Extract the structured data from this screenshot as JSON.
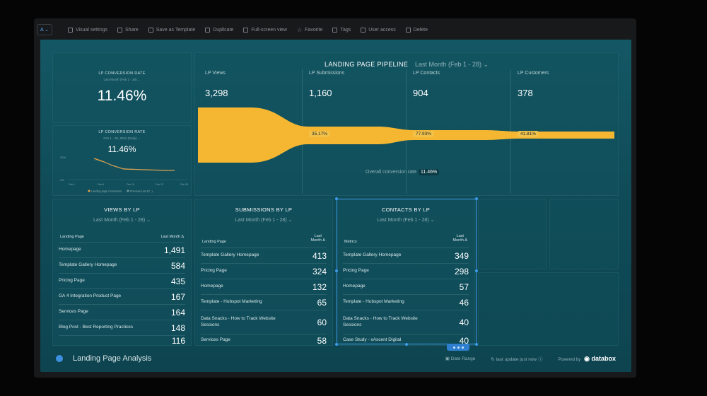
{
  "toolbar": {
    "logo": "A ⌄",
    "items": [
      "Visual settings",
      "Share",
      "Save as Template",
      "Duplicate",
      "Full-screen view",
      "Favorite",
      "Tags",
      "User access",
      "Delete"
    ]
  },
  "kpi_top": {
    "title": "LP CONVERSION RATE",
    "subtitle": "Last Month (Feb 1 - 28) ⌄",
    "value": "11.46%"
  },
  "kpi_chart": {
    "title": "LP CONVERSION RATE",
    "subtitle": "Feb 1 - 28, 2022 (Daily) ⌄",
    "value": "11.46%",
    "legend_current": "Landing page Conversion",
    "legend_previous": "Previous Last (P...)",
    "ytick_top": "20%",
    "ytick_bottom": "0%",
    "x_ticks": [
      "Feb 1",
      "Feb 8",
      "Feb 15",
      "Feb 22",
      "Feb 28"
    ],
    "colors": {
      "current": "#f2a23c",
      "previous": "#7a9aa0"
    }
  },
  "pipeline": {
    "title": "LANDING PAGE PIPELINE",
    "range": "Last Month (Feb 1 - 28) ⌄",
    "stages": [
      {
        "label": "LP Views",
        "value": "3,298"
      },
      {
        "label": "LP Submissions",
        "value": "1,160"
      },
      {
        "label": "LP Contacts",
        "value": "904"
      },
      {
        "label": "LP Customers",
        "value": "378"
      }
    ],
    "conversions": [
      "35.17%",
      "77.93%",
      "41.81%"
    ],
    "overall_label": "Overall conversion rate",
    "overall_value": "11.46%",
    "funnel_color": "#f5b731"
  },
  "views": {
    "title": "VIEWS BY LP",
    "range": "Last Month (Feb 1 - 28) ⌄",
    "col1": "Landing Page",
    "col2": "Last Month Δ",
    "rows": [
      {
        "name": "Homepage",
        "value": "1,491"
      },
      {
        "name": "Template Gallery Homepage",
        "value": "584"
      },
      {
        "name": "Pricing Page",
        "value": "435"
      },
      {
        "name": "GA 4 Integration Product Page",
        "value": "167"
      },
      {
        "name": "Services Page",
        "value": "164"
      },
      {
        "name": "Blog Post - Best Reporting Practices",
        "value": "148"
      },
      {
        "name": "",
        "value": "116"
      }
    ]
  },
  "submissions": {
    "title": "SUBMISSIONS BY LP",
    "range": "Last Month (Feb 1 - 28) ⌄",
    "col1": "Landing Page",
    "col2a": "Last",
    "col2b": "Month Δ",
    "rows": [
      {
        "name": "Template Gallery Homepage",
        "value": "413"
      },
      {
        "name": "Pricing Page",
        "value": "324"
      },
      {
        "name": "Homepage",
        "value": "132"
      },
      {
        "name": "Template - Hubspot Marketing",
        "value": "65"
      },
      {
        "name": "Data Snacks - How to Track Website Sessions",
        "value": "60"
      },
      {
        "name": "Services Page",
        "value": "58"
      }
    ]
  },
  "contacts": {
    "title": "CONTACTS BY LP",
    "range": "Last Month (Feb 1 - 28) ⌄",
    "col1": "Metrics",
    "col2a": "Last",
    "col2b": "Month Δ",
    "rows": [
      {
        "name": "Template Gallery Homepage",
        "value": "349"
      },
      {
        "name": "Pricing Page",
        "value": "298"
      },
      {
        "name": "Homepage",
        "value": "57"
      },
      {
        "name": "Template - Hubspot Marketing",
        "value": "46"
      },
      {
        "name": "Data Snacks - How to Track Website Sessions",
        "value": "40"
      },
      {
        "name": "Case Study - xAscent Digital",
        "value": "40"
      }
    ]
  },
  "footer": {
    "title": "Landing Page Analysis",
    "date_range": "Date Range",
    "last_update": "last update just now",
    "powered": "Powered by",
    "brand": "databox"
  }
}
